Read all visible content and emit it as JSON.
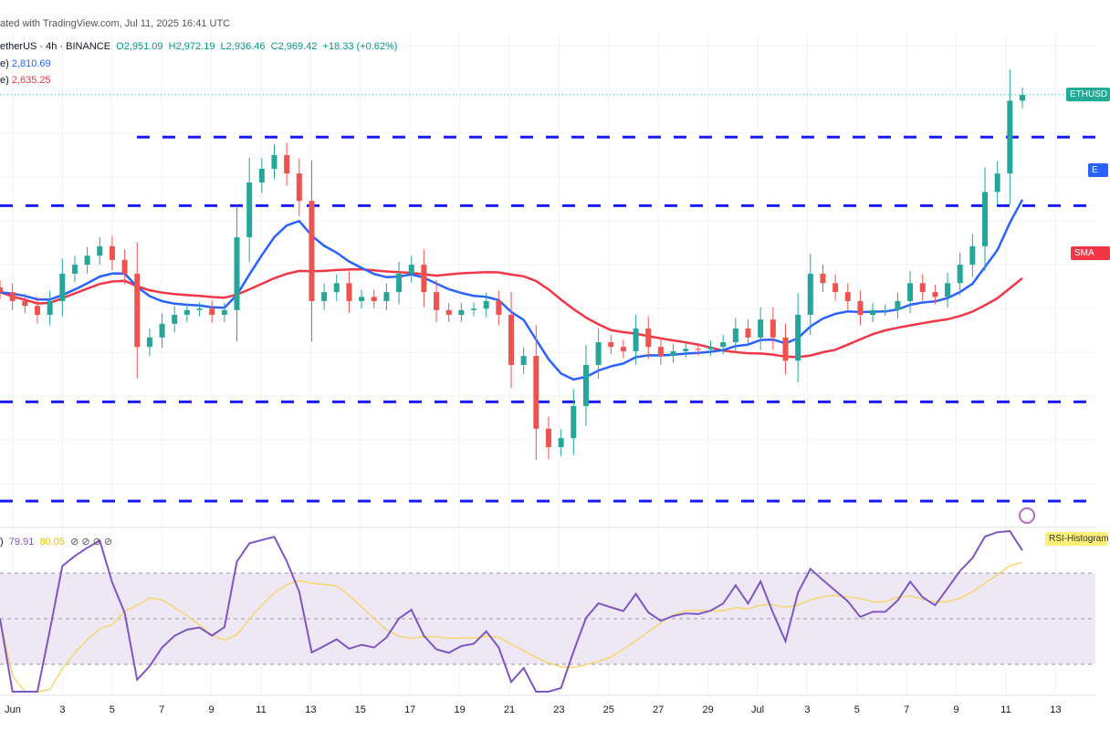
{
  "header": {
    "attribution": "ated with TradingView.com, Jul 11, 2025 16:41 UTC",
    "symbol": "etherUS · 4h · BINANCE",
    "open": "O2,951.09",
    "high": "H2,972.19",
    "low": "L2,936.46",
    "close": "C2,969.42",
    "change": "+18.33 (+0.62%)",
    "ema_label": "e)",
    "ema_value": "2,810.69",
    "sma_label": "e)",
    "sma_value": "2,635.25"
  },
  "rsi_legend": {
    "prefix": ")",
    "rsi": "79.91",
    "rsi_ma": "80.05",
    "icons": "⊘ ⊘ ⊘ ⊘"
  },
  "price_tags": {
    "last": "ETHUSD",
    "ema": "E",
    "sma": "SMA",
    "rsi": "RSI-Histogram"
  },
  "colors": {
    "up": "#26a69a",
    "down": "#ef5350",
    "ema": "#2962ff",
    "sma": "#f23645",
    "levels": "#1a1aff",
    "rsi": "#7e57c2",
    "rsi_ma": "#f5d76e",
    "rsi_band": "#ede7f6",
    "last_tag": "#22ab94"
  },
  "chart_data": {
    "type": "candlestick",
    "interval": "4h",
    "ylim": [
      2060,
      3170
    ],
    "x_tick_labels": [
      "Jun",
      "3",
      "5",
      "7",
      "9",
      "11",
      "13",
      "15",
      "17",
      "19",
      "21",
      "23",
      "25",
      "27",
      "29",
      "Jul",
      "3",
      "5",
      "7",
      "9",
      "11",
      "13"
    ],
    "closes": [
      2552,
      2533,
      2523,
      2504,
      2533,
      2591,
      2610,
      2629,
      2649,
      2620,
      2591,
      2436,
      2456,
      2485,
      2504,
      2514,
      2517,
      2504,
      2514,
      2668,
      2784,
      2813,
      2842,
      2803,
      2745,
      2533,
      2552,
      2571,
      2533,
      2542,
      2533,
      2552,
      2591,
      2610,
      2552,
      2514,
      2504,
      2514,
      2517,
      2533,
      2504,
      2398,
      2417,
      2263,
      2224,
      2243,
      2311,
      2398,
      2446,
      2436,
      2427,
      2475,
      2436,
      2417,
      2427,
      2432,
      2431,
      2436,
      2446,
      2475,
      2456,
      2494,
      2456,
      2407,
      2504,
      2591,
      2571,
      2552,
      2533,
      2504,
      2514,
      2514,
      2533,
      2571,
      2552,
      2542,
      2571,
      2610,
      2649,
      2764,
      2803,
      2957,
      2969
    ],
    "last_price": 2969.42,
    "horizontal_levels": [
      2880,
      2735,
      2320,
      2110
    ],
    "indicators": {
      "ema_value": 2810.69,
      "sma_value": 2635.25,
      "rsi_value": 79.91,
      "rsi_ma_value": 80.05,
      "rsi_bands": [
        30,
        50,
        70
      ]
    }
  }
}
